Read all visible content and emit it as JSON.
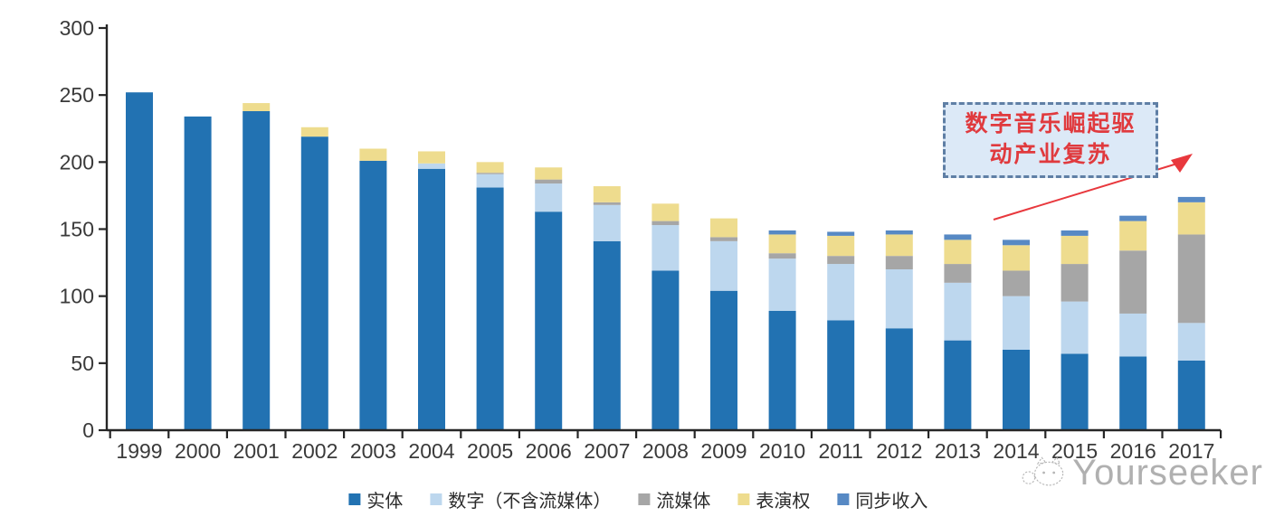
{
  "chart_data": {
    "type": "bar",
    "stacked": true,
    "title": "",
    "xlabel": "",
    "ylabel": "",
    "categories": [
      "1999",
      "2000",
      "2001",
      "2002",
      "2003",
      "2004",
      "2005",
      "2006",
      "2007",
      "2008",
      "2009",
      "2010",
      "2011",
      "2012",
      "2013",
      "2014",
      "2015",
      "2016",
      "2017"
    ],
    "series": [
      {
        "name": "实体",
        "color": "#2272b2",
        "values": [
          252,
          234,
          238,
          219,
          201,
          195,
          181,
          163,
          141,
          119,
          104,
          89,
          82,
          76,
          67,
          60,
          57,
          55,
          52
        ]
      },
      {
        "name": "数字（不含流媒体）",
        "color": "#bdd7ee",
        "values": [
          0,
          0,
          0,
          0,
          0,
          4,
          10,
          21,
          27,
          34,
          37,
          39,
          42,
          44,
          43,
          40,
          39,
          32,
          28
        ]
      },
      {
        "name": "流媒体",
        "color": "#a6a6a6",
        "values": [
          0,
          0,
          0,
          0,
          0,
          0,
          1,
          3,
          2,
          3,
          3,
          4,
          6,
          10,
          14,
          19,
          28,
          47,
          66
        ]
      },
      {
        "name": "表演权",
        "color": "#eedc8e",
        "values": [
          0,
          0,
          6,
          7,
          9,
          9,
          8,
          9,
          12,
          13,
          14,
          14,
          15,
          16,
          18,
          19,
          21,
          22,
          24
        ]
      },
      {
        "name": "同步收入",
        "color": "#5789c4",
        "values": [
          0,
          0,
          0,
          0,
          0,
          0,
          0,
          0,
          0,
          0,
          0,
          3,
          3,
          3,
          4,
          4,
          4,
          4,
          4
        ]
      }
    ],
    "totals": [
      252,
      234,
      244,
      226,
      210,
      208,
      200,
      196,
      182,
      169,
      158,
      149,
      148,
      149,
      146,
      142,
      149,
      160,
      174
    ],
    "ylim": [
      0,
      300
    ],
    "y_ticks": [
      0,
      50,
      100,
      150,
      200,
      250,
      300
    ],
    "grid": false,
    "legend_position": "bottom"
  },
  "annotation": {
    "text": "数字音乐崛起驱动产业复苏",
    "line1": "数字音乐崛起驱",
    "line2": "动产业复苏",
    "text_color": "#e03a3e",
    "box_fill": "#dce9f7",
    "box_border_color": "#5f7fa5",
    "arrow_color": "#e8383d"
  },
  "watermark": {
    "text": "Yourseeker"
  },
  "colors": {
    "axis": "#262626",
    "tick_label": "#3a3a3a",
    "background": "#ffffff"
  }
}
